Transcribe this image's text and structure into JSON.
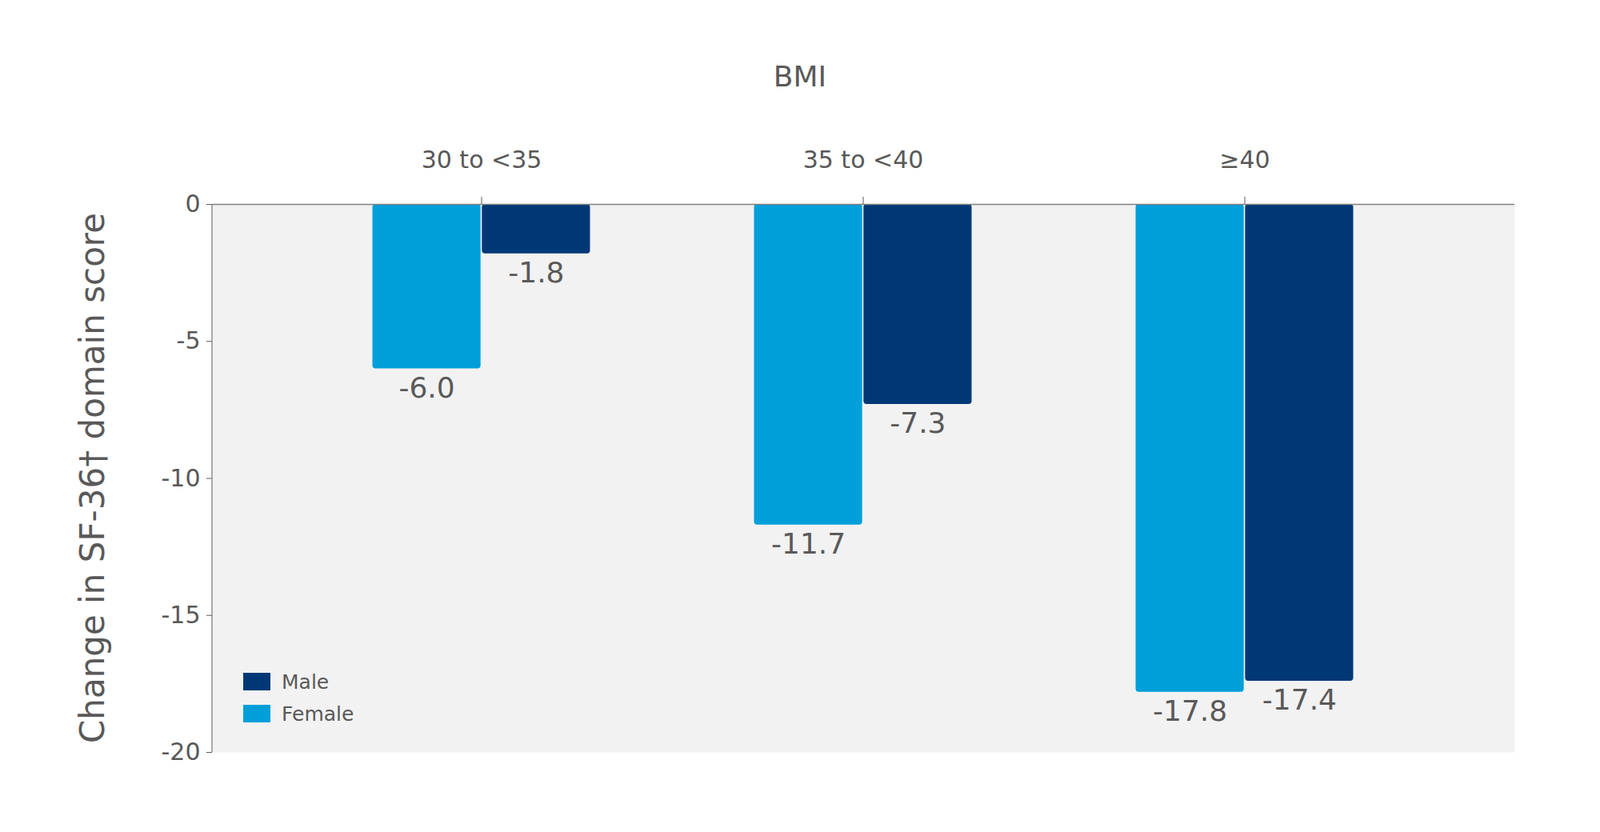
{
  "chart_data": {
    "type": "bar",
    "title": "BMI",
    "ylabel": "Change in SF-36† domain score",
    "categories": [
      "30 to <35",
      "35 to <40",
      "≥40"
    ],
    "series": [
      {
        "name": "Female",
        "color": "#009fda",
        "values": [
          -6.0,
          -11.7,
          -17.8
        ],
        "value_labels": [
          "-6.0",
          "-11.7",
          "-17.8"
        ]
      },
      {
        "name": "Male",
        "color": "#003876",
        "values": [
          -1.8,
          -7.3,
          -17.4
        ]
      }
    ],
    "ylim": [
      -20,
      0
    ],
    "yticks": [
      0,
      -5,
      -10,
      -15,
      -20
    ],
    "data_labels": true,
    "legend": "lower left",
    "grid": false
  }
}
